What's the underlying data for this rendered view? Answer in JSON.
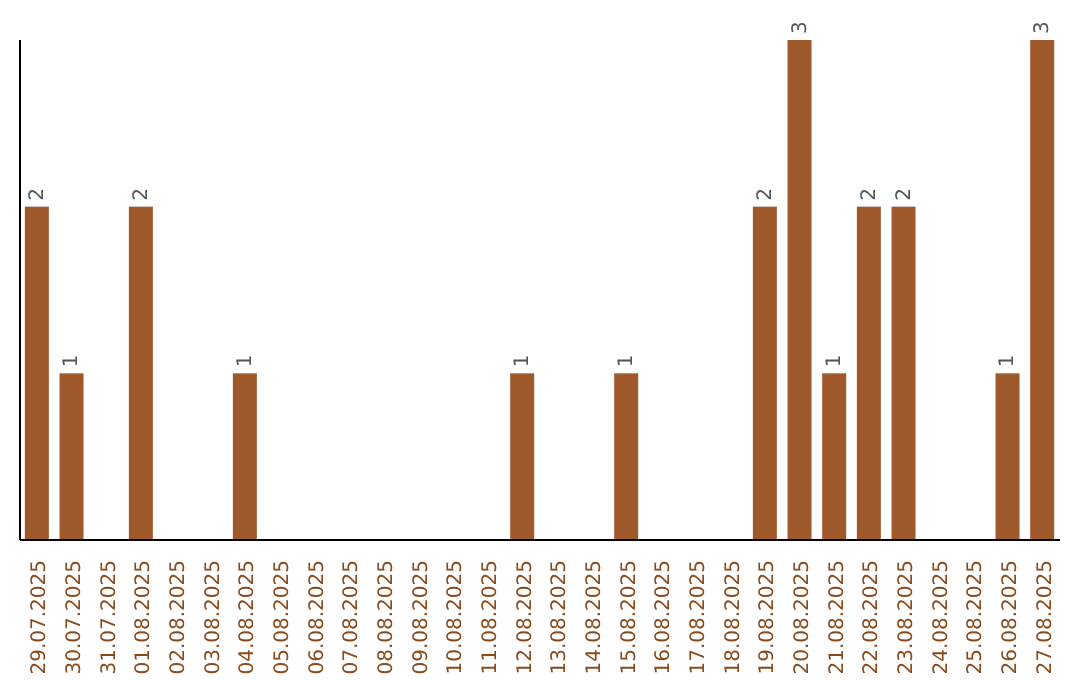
{
  "chart_data": {
    "type": "bar",
    "categories": [
      "29.07.2025",
      "30.07.2025",
      "31.07.2025",
      "01.08.2025",
      "02.08.2025",
      "03.08.2025",
      "04.08.2025",
      "05.08.2025",
      "06.08.2025",
      "07.08.2025",
      "08.08.2025",
      "09.08.2025",
      "10.08.2025",
      "11.08.2025",
      "12.08.2025",
      "13.08.2025",
      "14.08.2025",
      "15.08.2025",
      "16.08.2025",
      "17.08.2025",
      "18.08.2025",
      "19.08.2025",
      "20.08.2025",
      "21.08.2025",
      "22.08.2025",
      "23.08.2025",
      "24.08.2025",
      "25.08.2025",
      "26.08.2025",
      "27.08.2025"
    ],
    "values": [
      2,
      1,
      0,
      2,
      0,
      0,
      1,
      0,
      0,
      0,
      0,
      0,
      0,
      0,
      1,
      0,
      0,
      1,
      0,
      0,
      0,
      2,
      3,
      1,
      2,
      2,
      0,
      0,
      1,
      3
    ],
    "value_labels": [
      "2",
      "1",
      null,
      "2",
      null,
      null,
      "1",
      null,
      null,
      null,
      null,
      null,
      null,
      null,
      "1",
      null,
      null,
      "1",
      null,
      null,
      null,
      "2",
      "3",
      "1",
      "2",
      "2",
      null,
      null,
      "1",
      "3"
    ],
    "color": "#a0592b",
    "grid": false,
    "tick_labels": "x"
  }
}
